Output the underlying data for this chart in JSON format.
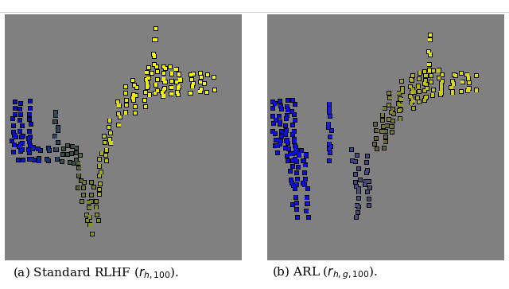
{
  "caption_fontsize": 11,
  "bg_color": "#808080",
  "fig_bg": "#ffffff",
  "panel_bg": "#808080"
}
